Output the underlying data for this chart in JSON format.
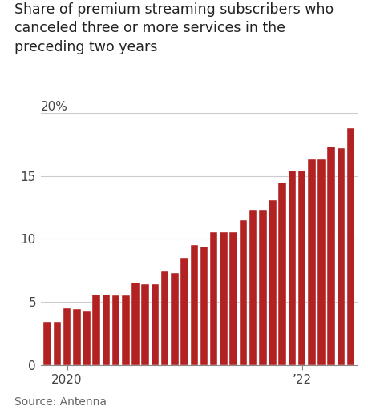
{
  "title": "Share of premium streaming subscribers who\ncanceled three or more services in the\npreceding two years",
  "source": "Source: Antenna",
  "bar_color": "#b22222",
  "bar_edge_color": "#ffffff",
  "background_color": "#ffffff",
  "yticks": [
    0,
    5,
    10,
    15
  ],
  "ytick_labels": [
    "0",
    "5",
    "10",
    "15"
  ],
  "ylim": [
    0,
    20.5
  ],
  "values": [
    3.4,
    3.4,
    4.5,
    4.4,
    4.3,
    5.6,
    5.6,
    5.5,
    5.5,
    6.5,
    6.4,
    6.4,
    7.4,
    7.3,
    8.5,
    9.5,
    9.4,
    10.5,
    10.5,
    10.5,
    11.5,
    12.3,
    12.3,
    13.1,
    14.5,
    15.4,
    15.4,
    16.3,
    16.3,
    17.3,
    17.2,
    18.8
  ],
  "xtick_pos_2020": 2,
  "xtick_pos_22": 26,
  "title_fontsize": 12.5,
  "tick_fontsize": 11,
  "source_fontsize": 10,
  "grid_color": "#cccccc",
  "grid_linewidth": 0.8,
  "bar_width": 0.78,
  "twenty_pct_label_color": "#444444",
  "tick_color": "#444444"
}
